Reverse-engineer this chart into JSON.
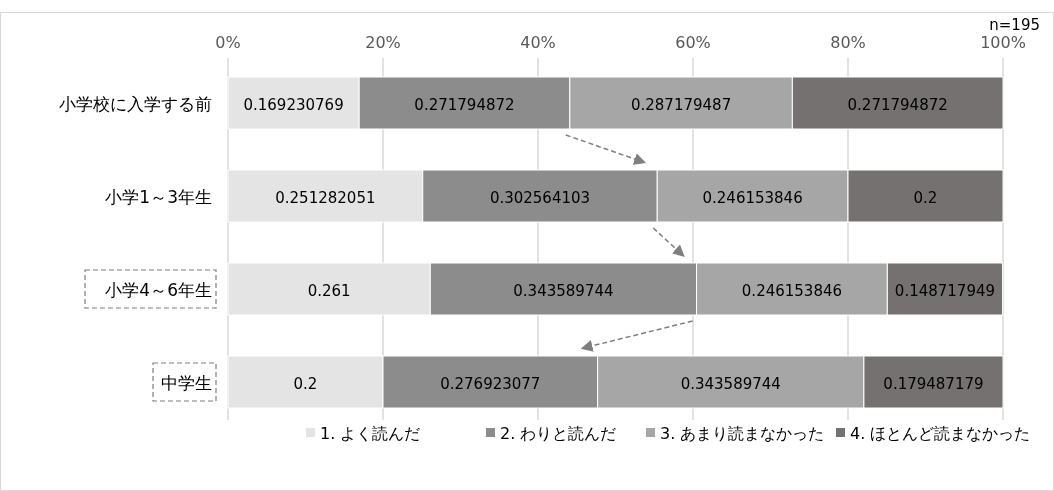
{
  "chart_data": {
    "type": "bar",
    "orientation": "horizontal",
    "stacked": true,
    "data_labels": true,
    "grid": "x",
    "legend": "bottom",
    "categories": [
      "小学校に入学する前",
      "小学1～3年生",
      "小学4～6年生",
      "中学生"
    ],
    "series": [
      {
        "name": "1. よく読んだ",
        "color": "#e4e4e4",
        "values": [
          0.169230769,
          0.251282051,
          0.261,
          0.2
        ]
      },
      {
        "name": "2. わりと読んだ",
        "color": "#8c8c8c",
        "values": [
          0.271794872,
          0.302564103,
          0.343589744,
          0.276923077
        ]
      },
      {
        "name": "3. あまり読まなかった",
        "color": "#a6a6a6",
        "values": [
          0.287179487,
          0.246153846,
          0.246153846,
          0.343589744
        ]
      },
      {
        "name": "4. ほとんど読まなかった",
        "color": "#767171",
        "values": [
          0.271794872,
          0.2,
          0.148717949,
          0.179487179
        ]
      }
    ],
    "xlim": [
      0,
      1
    ],
    "xticks": [
      {
        "value": 0,
        "label": "0%"
      },
      {
        "value": 0.2,
        "label": "20%"
      },
      {
        "value": 0.4,
        "label": "40%"
      },
      {
        "value": 0.6,
        "label": "60%"
      },
      {
        "value": 0.8,
        "label": "80%"
      },
      {
        "value": 1,
        "label": "100%"
      }
    ],
    "annotations": [
      "n=195"
    ]
  }
}
